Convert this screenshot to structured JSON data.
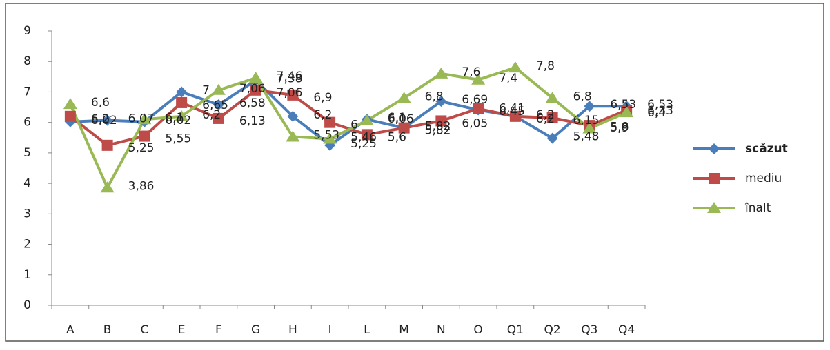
{
  "chart_data": {
    "type": "line",
    "categories": [
      "A",
      "B",
      "C",
      "E",
      "F",
      "G",
      "H",
      "I",
      "L",
      "M",
      "N",
      "O",
      "Q1",
      "Q2",
      "Q3",
      "Q4"
    ],
    "series": [
      {
        "name": "scăzut",
        "color": "#4a7ebb",
        "marker": "diamond",
        "values": [
          6.02,
          6.07,
          6.02,
          7,
          6.58,
          7.38,
          6.2,
          5.25,
          6.1,
          5.82,
          6.69,
          6.41,
          6.2,
          5.48,
          6.53,
          6.53
        ],
        "value_labels": [
          "6,02",
          "6,07",
          "6,02",
          "7",
          "6,58",
          "7,38",
          "6,2",
          "5,25",
          "6,1",
          "5,82",
          "6,69",
          "6,41",
          "6,2",
          "5,48",
          "6,53",
          "6,53"
        ]
      },
      {
        "name": "mediu",
        "color": "#be4b48",
        "marker": "square",
        "values": [
          6.2,
          5.25,
          5.55,
          6.65,
          6.13,
          7.06,
          6.9,
          6,
          5.6,
          5.82,
          6.05,
          6.45,
          6.2,
          6.15,
          5.9,
          6.4
        ],
        "value_labels": [
          "6,2",
          "5,25",
          "5,55",
          "6,65",
          "6,13",
          "7,06",
          "6,9",
          "6",
          "5,6",
          "5,82",
          "6,05",
          "6,45",
          "6,2",
          "6,15",
          "5,9",
          "6,4"
        ]
      },
      {
        "name": "înalt",
        "color": "#98b954",
        "marker": "triangle",
        "values": [
          6.6,
          3.86,
          6.1,
          6.2,
          7.06,
          7.46,
          5.53,
          5.46,
          6.06,
          6.8,
          7.6,
          7.4,
          7.8,
          6.8,
          5.8,
          6.33
        ],
        "value_labels": [
          "6,6",
          "3,86",
          "6,1",
          "6,2",
          "7,06",
          "7,46",
          "5,53",
          "5,46",
          "6,06",
          "6,8",
          "7,6",
          "7,4",
          "7,8",
          "6,8",
          "5,8",
          "6,33"
        ]
      }
    ],
    "ylim": [
      0,
      9
    ],
    "yticks": [
      0,
      1,
      2,
      3,
      4,
      5,
      6,
      7,
      8,
      9
    ],
    "grid": false,
    "legend": "right"
  }
}
